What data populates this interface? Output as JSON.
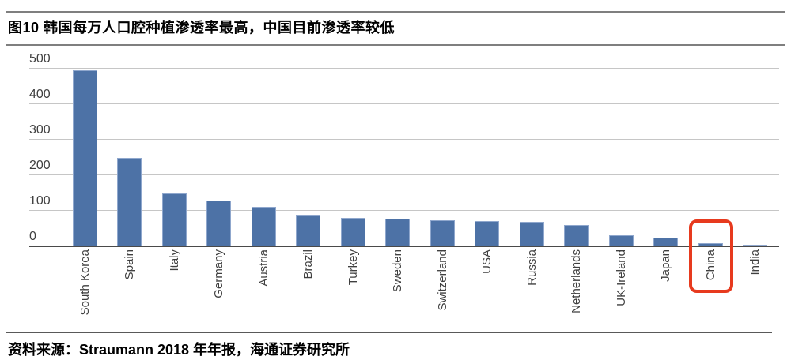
{
  "header": {
    "title": "图10 韩国每万人口腔种植渗透率最高，中国目前渗透率较低"
  },
  "footer": {
    "source": "资料来源：Straumann 2018 年年报，海通证券研究所"
  },
  "chart_data": {
    "type": "bar",
    "title": "韩国每万人口腔种植渗透率最高，中国目前渗透率较低",
    "categories": [
      "South Korea",
      "Spain",
      "Italy",
      "Germany",
      "Austria",
      "Brazil",
      "Turkey",
      "Sweden",
      "Switzerland",
      "USA",
      "Russia",
      "Netherlands",
      "UK-Ireland",
      "Japan",
      "China",
      "India"
    ],
    "values": [
      495,
      250,
      150,
      130,
      112,
      90,
      80,
      77,
      73,
      71,
      68,
      60,
      32,
      25,
      8,
      2
    ],
    "xlabel": "",
    "ylabel": "",
    "yticks": [
      0,
      100,
      200,
      300,
      400,
      500
    ],
    "ylim": [
      0,
      500
    ],
    "grid": true,
    "legend_position": "none",
    "bar_color": "#4d72a6",
    "xlabel_rotation": 90,
    "highlight": {
      "category": "China",
      "box_color": "#e73a1e",
      "note": "red box drawn around the China bar and its axis label"
    }
  }
}
